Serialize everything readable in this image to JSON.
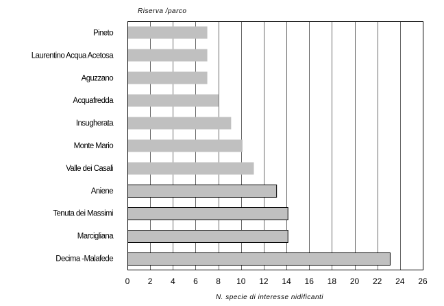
{
  "chart_data": {
    "type": "bar",
    "orientation": "horizontal",
    "categories": [
      "Pineto",
      "Laurentino Acqua Acetosa",
      "Aguzzano",
      "Acquafredda",
      "Insugherata",
      "Monte Mario",
      "Valle dei Casali",
      "Aniene",
      "Tenuta dei Massimi",
      "Marcigliana",
      "Decima -Malafede"
    ],
    "values": [
      7,
      7,
      7,
      8,
      9.1,
      10.1,
      11.1,
      13.1,
      14.1,
      14.1,
      23.1
    ],
    "bar_color": "#c0c0c0",
    "ylabel": "Riserva /parco",
    "xlabel": "N. specie di interesse nidificanti",
    "xlim": [
      0,
      26
    ],
    "xticks": [
      "0",
      "2",
      "4",
      "6",
      "8",
      "10",
      "12",
      "14",
      "16",
      "18",
      "20",
      "22",
      "24",
      "26"
    ],
    "grid": "vertical"
  }
}
